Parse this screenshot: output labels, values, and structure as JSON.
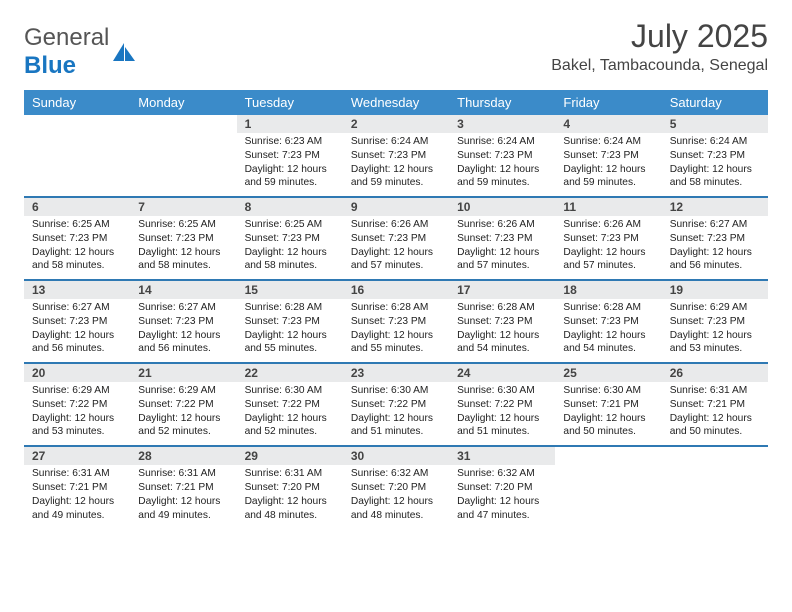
{
  "brand": {
    "part1": "General",
    "part2": "Blue"
  },
  "title": "July 2025",
  "location": "Bakel, Tambacounda, Senegal",
  "daysOfWeek": [
    "Sunday",
    "Monday",
    "Tuesday",
    "Wednesday",
    "Thursday",
    "Friday",
    "Saturday"
  ],
  "colors": {
    "headerBg": "#3b8bc9",
    "dayHeadBg": "#e9eaeb",
    "rowBorder": "#2f79b3",
    "brandBlue": "#1976c1"
  },
  "weeks": [
    [
      {
        "blank": true
      },
      {
        "blank": true
      },
      {
        "num": "1",
        "sunrise": "6:23 AM",
        "sunset": "7:23 PM",
        "daylight": "12 hours and 59 minutes."
      },
      {
        "num": "2",
        "sunrise": "6:24 AM",
        "sunset": "7:23 PM",
        "daylight": "12 hours and 59 minutes."
      },
      {
        "num": "3",
        "sunrise": "6:24 AM",
        "sunset": "7:23 PM",
        "daylight": "12 hours and 59 minutes."
      },
      {
        "num": "4",
        "sunrise": "6:24 AM",
        "sunset": "7:23 PM",
        "daylight": "12 hours and 59 minutes."
      },
      {
        "num": "5",
        "sunrise": "6:24 AM",
        "sunset": "7:23 PM",
        "daylight": "12 hours and 58 minutes."
      }
    ],
    [
      {
        "num": "6",
        "sunrise": "6:25 AM",
        "sunset": "7:23 PM",
        "daylight": "12 hours and 58 minutes."
      },
      {
        "num": "7",
        "sunrise": "6:25 AM",
        "sunset": "7:23 PM",
        "daylight": "12 hours and 58 minutes."
      },
      {
        "num": "8",
        "sunrise": "6:25 AM",
        "sunset": "7:23 PM",
        "daylight": "12 hours and 58 minutes."
      },
      {
        "num": "9",
        "sunrise": "6:26 AM",
        "sunset": "7:23 PM",
        "daylight": "12 hours and 57 minutes."
      },
      {
        "num": "10",
        "sunrise": "6:26 AM",
        "sunset": "7:23 PM",
        "daylight": "12 hours and 57 minutes."
      },
      {
        "num": "11",
        "sunrise": "6:26 AM",
        "sunset": "7:23 PM",
        "daylight": "12 hours and 57 minutes."
      },
      {
        "num": "12",
        "sunrise": "6:27 AM",
        "sunset": "7:23 PM",
        "daylight": "12 hours and 56 minutes."
      }
    ],
    [
      {
        "num": "13",
        "sunrise": "6:27 AM",
        "sunset": "7:23 PM",
        "daylight": "12 hours and 56 minutes."
      },
      {
        "num": "14",
        "sunrise": "6:27 AM",
        "sunset": "7:23 PM",
        "daylight": "12 hours and 56 minutes."
      },
      {
        "num": "15",
        "sunrise": "6:28 AM",
        "sunset": "7:23 PM",
        "daylight": "12 hours and 55 minutes."
      },
      {
        "num": "16",
        "sunrise": "6:28 AM",
        "sunset": "7:23 PM",
        "daylight": "12 hours and 55 minutes."
      },
      {
        "num": "17",
        "sunrise": "6:28 AM",
        "sunset": "7:23 PM",
        "daylight": "12 hours and 54 minutes."
      },
      {
        "num": "18",
        "sunrise": "6:28 AM",
        "sunset": "7:23 PM",
        "daylight": "12 hours and 54 minutes."
      },
      {
        "num": "19",
        "sunrise": "6:29 AM",
        "sunset": "7:23 PM",
        "daylight": "12 hours and 53 minutes."
      }
    ],
    [
      {
        "num": "20",
        "sunrise": "6:29 AM",
        "sunset": "7:22 PM",
        "daylight": "12 hours and 53 minutes."
      },
      {
        "num": "21",
        "sunrise": "6:29 AM",
        "sunset": "7:22 PM",
        "daylight": "12 hours and 52 minutes."
      },
      {
        "num": "22",
        "sunrise": "6:30 AM",
        "sunset": "7:22 PM",
        "daylight": "12 hours and 52 minutes."
      },
      {
        "num": "23",
        "sunrise": "6:30 AM",
        "sunset": "7:22 PM",
        "daylight": "12 hours and 51 minutes."
      },
      {
        "num": "24",
        "sunrise": "6:30 AM",
        "sunset": "7:22 PM",
        "daylight": "12 hours and 51 minutes."
      },
      {
        "num": "25",
        "sunrise": "6:30 AM",
        "sunset": "7:21 PM",
        "daylight": "12 hours and 50 minutes."
      },
      {
        "num": "26",
        "sunrise": "6:31 AM",
        "sunset": "7:21 PM",
        "daylight": "12 hours and 50 minutes."
      }
    ],
    [
      {
        "num": "27",
        "sunrise": "6:31 AM",
        "sunset": "7:21 PM",
        "daylight": "12 hours and 49 minutes."
      },
      {
        "num": "28",
        "sunrise": "6:31 AM",
        "sunset": "7:21 PM",
        "daylight": "12 hours and 49 minutes."
      },
      {
        "num": "29",
        "sunrise": "6:31 AM",
        "sunset": "7:20 PM",
        "daylight": "12 hours and 48 minutes."
      },
      {
        "num": "30",
        "sunrise": "6:32 AM",
        "sunset": "7:20 PM",
        "daylight": "12 hours and 48 minutes."
      },
      {
        "num": "31",
        "sunrise": "6:32 AM",
        "sunset": "7:20 PM",
        "daylight": "12 hours and 47 minutes."
      },
      {
        "blank": true
      },
      {
        "blank": true
      }
    ]
  ],
  "labels": {
    "sunrise": "Sunrise: ",
    "sunset": "Sunset: ",
    "daylight": "Daylight: "
  }
}
